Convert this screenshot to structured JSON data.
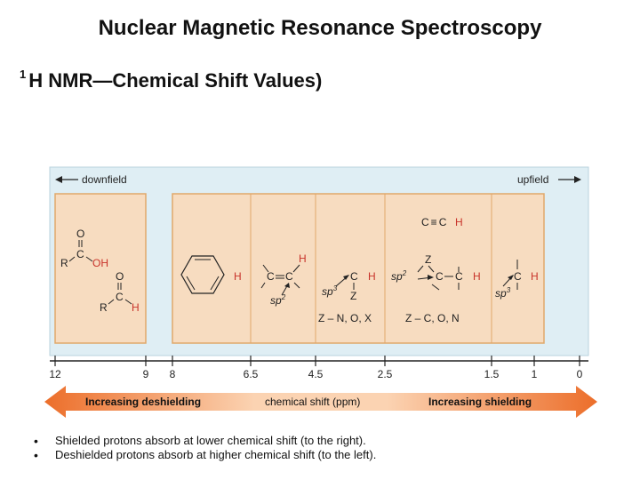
{
  "slide": {
    "title": "Nuclear Magnetic Resonance Spectroscopy",
    "subtitle_sup": "1",
    "subtitle": "H NMR—Chemical Shift Values)"
  },
  "figure": {
    "downfield_label": "downfield",
    "upfield_label": "upfield",
    "axis_ticks": [
      "12",
      "9",
      "8",
      "6.5",
      "4.5",
      "2.5",
      "1.5",
      "1",
      "0"
    ],
    "axis_label": "chemical shift (ppm)",
    "deshielding_label": "Increasing deshielding",
    "shielding_label": "Increasing shielding",
    "colors": {
      "panel_bg": "#dfeef4",
      "box_fill": "#f7dcc0",
      "box_border": "#e0a86a",
      "arrow_orange": "#ec6e2a",
      "arrow_light": "#fbd3b2",
      "h_red": "#c8332a"
    },
    "groups": {
      "carbonyl": {
        "O": "O",
        "C": "C",
        "R": "R",
        "OH": "OH",
        "H": "H"
      },
      "aromatic": {
        "H": "H"
      },
      "alkene": {
        "H": "H",
        "C": "C",
        "sp2": "sp",
        "sp2_sup": "2"
      },
      "heteroatom": {
        "C": "C",
        "H": "H",
        "Z": "Z",
        "sp3": "sp",
        "sp3_sup": "3",
        "z_list": "Z – N, O, X"
      },
      "allylic": {
        "C": "C",
        "H": "H",
        "Z": "Z",
        "sp2": "sp",
        "sp2_sup": "2",
        "z_list": "Z – C, O, N",
        "alkyne": "C≡C"
      },
      "alkyl": {
        "C": "C",
        "H": "H",
        "sp3": "sp",
        "sp3_sup": "3"
      }
    }
  },
  "bullets": [
    "Shielded protons absorb at lower chemical shift (to the right).",
    "Deshielded protons absorb at higher chemical shift (to the left)."
  ]
}
